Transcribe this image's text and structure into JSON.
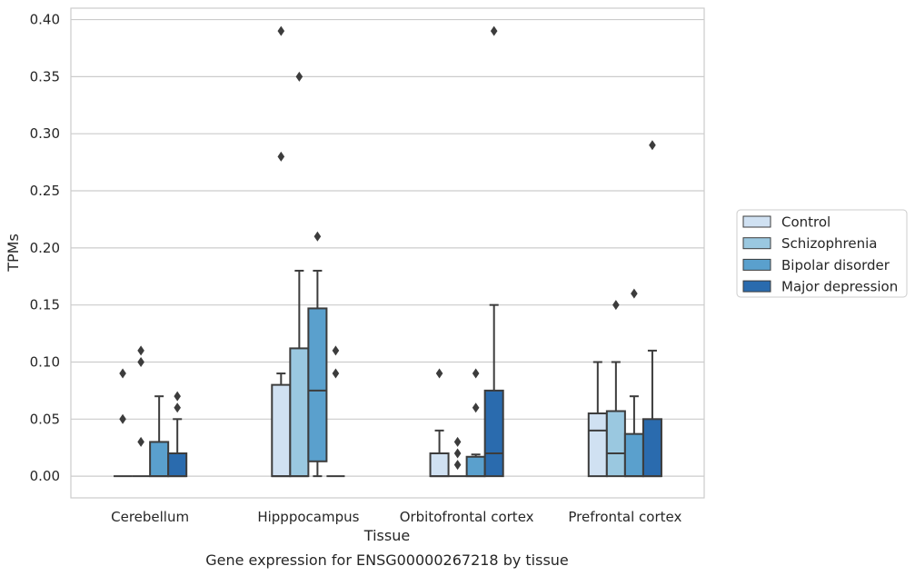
{
  "caption": "Gene expression for ENSG00000267218 by tissue",
  "chart_data": {
    "type": "boxplot",
    "xlabel": "Tissue",
    "ylabel": "TPMs",
    "ylim": [
      -0.019,
      0.41
    ],
    "yticks": [
      0.0,
      0.05,
      0.1,
      0.15,
      0.2,
      0.25,
      0.3,
      0.35,
      0.4
    ],
    "ytick_labels": [
      "0.00",
      "0.05",
      "0.10",
      "0.15",
      "0.20",
      "0.25",
      "0.30",
      "0.35",
      "0.40"
    ],
    "grid": true,
    "legend_position": "right",
    "categories": [
      "Cerebellum",
      "Hipppocampus",
      "Orbitofrontal cortex",
      "Prefrontal cortex"
    ],
    "series": [
      {
        "name": "Control",
        "color": "#d0e1f2",
        "boxes": [
          {
            "q1": 0.0,
            "median": 0.0,
            "q3": 0.0,
            "whislo": 0.0,
            "whishi": 0.0,
            "fliers": [
              0.05,
              0.09
            ]
          },
          {
            "q1": 0.0,
            "median": 0.0,
            "q3": 0.08,
            "whislo": 0.0,
            "whishi": 0.09,
            "fliers": [
              0.28,
              0.39
            ]
          },
          {
            "q1": 0.0,
            "median": 0.0,
            "q3": 0.02,
            "whislo": 0.0,
            "whishi": 0.04,
            "fliers": [
              0.09
            ]
          },
          {
            "q1": 0.0,
            "median": 0.04,
            "q3": 0.055,
            "whislo": 0.0,
            "whishi": 0.1,
            "fliers": []
          }
        ]
      },
      {
        "name": "Schizophrenia",
        "color": "#9ac8e0",
        "boxes": [
          {
            "q1": 0.0,
            "median": 0.0,
            "q3": 0.0,
            "whislo": 0.0,
            "whishi": 0.0,
            "fliers": [
              0.03,
              0.1,
              0.11
            ]
          },
          {
            "q1": 0.0,
            "median": 0.0,
            "q3": 0.112,
            "whislo": 0.0,
            "whishi": 0.18,
            "fliers": [
              0.35
            ]
          },
          {
            "q1": 0.0,
            "median": 0.0,
            "q3": 0.0,
            "whislo": 0.0,
            "whishi": 0.0,
            "fliers": [
              0.01,
              0.02,
              0.03
            ]
          },
          {
            "q1": 0.0,
            "median": 0.02,
            "q3": 0.057,
            "whislo": 0.0,
            "whishi": 0.1,
            "fliers": [
              0.15
            ]
          }
        ]
      },
      {
        "name": "Bipolar disorder",
        "color": "#5aa0cd",
        "boxes": [
          {
            "q1": 0.0,
            "median": 0.0,
            "q3": 0.03,
            "whislo": 0.0,
            "whishi": 0.07,
            "fliers": []
          },
          {
            "q1": 0.013,
            "median": 0.075,
            "q3": 0.147,
            "whislo": 0.0,
            "whishi": 0.18,
            "fliers": [
              0.21
            ]
          },
          {
            "q1": 0.0,
            "median": 0.0,
            "q3": 0.017,
            "whislo": 0.0,
            "whishi": 0.019,
            "fliers": [
              0.06,
              0.09
            ]
          },
          {
            "q1": 0.0,
            "median": 0.0,
            "q3": 0.037,
            "whislo": 0.0,
            "whishi": 0.07,
            "fliers": [
              0.16
            ]
          }
        ]
      },
      {
        "name": "Major depression",
        "color": "#2a6bae",
        "boxes": [
          {
            "q1": 0.0,
            "median": 0.0,
            "q3": 0.02,
            "whislo": 0.0,
            "whishi": 0.05,
            "fliers": [
              0.06,
              0.07
            ]
          },
          {
            "q1": 0.0,
            "median": 0.0,
            "q3": 0.0,
            "whislo": 0.0,
            "whishi": 0.0,
            "fliers": [
              0.09,
              0.11
            ]
          },
          {
            "q1": 0.0,
            "median": 0.02,
            "q3": 0.075,
            "whislo": 0.0,
            "whishi": 0.15,
            "fliers": [
              0.39
            ]
          },
          {
            "q1": 0.0,
            "median": 0.0,
            "q3": 0.05,
            "whislo": 0.0,
            "whishi": 0.11,
            "fliers": [
              0.29
            ]
          }
        ]
      }
    ]
  }
}
